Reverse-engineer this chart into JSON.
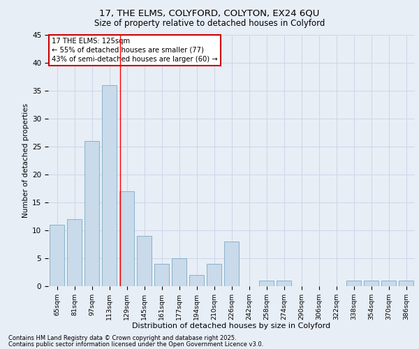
{
  "title1": "17, THE ELMS, COLYFORD, COLYTON, EX24 6QU",
  "title2": "Size of property relative to detached houses in Colyford",
  "xlabel": "Distribution of detached houses by size in Colyford",
  "ylabel": "Number of detached properties",
  "categories": [
    "65sqm",
    "81sqm",
    "97sqm",
    "113sqm",
    "129sqm",
    "145sqm",
    "161sqm",
    "177sqm",
    "194sqm",
    "210sqm",
    "226sqm",
    "242sqm",
    "258sqm",
    "274sqm",
    "290sqm",
    "306sqm",
    "322sqm",
    "338sqm",
    "354sqm",
    "370sqm",
    "386sqm"
  ],
  "values": [
    11,
    12,
    26,
    36,
    17,
    9,
    4,
    5,
    2,
    4,
    8,
    0,
    1,
    1,
    0,
    0,
    0,
    1,
    1,
    1,
    1
  ],
  "bar_color": "#c9daea",
  "bar_edge_color": "#7aaac8",
  "grid_color": "#ccd6e8",
  "bg_color": "#e8eef6",
  "red_line_x": 3.62,
  "annotation_text": "17 THE ELMS: 125sqm\n← 55% of detached houses are smaller (77)\n43% of semi-detached houses are larger (60) →",
  "annotation_box_color": "#ffffff",
  "annotation_box_edge_color": "#cc0000",
  "footer1": "Contains HM Land Registry data © Crown copyright and database right 2025.",
  "footer2": "Contains public sector information licensed under the Open Government Licence v3.0.",
  "ylim": [
    0,
    45
  ],
  "yticks": [
    0,
    5,
    10,
    15,
    20,
    25,
    30,
    35,
    40,
    45
  ]
}
